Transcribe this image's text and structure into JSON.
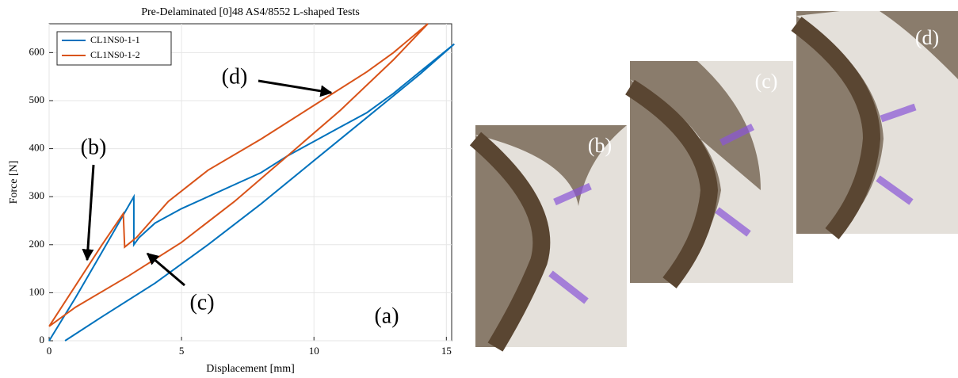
{
  "chart_data": {
    "type": "line",
    "title": "Pre-Delaminated [0]48 AS4/8552 L-shaped Tests",
    "x_label": "Displacement [mm]",
    "y_label": "Force [N]",
    "xlim": [
      0,
      15.2
    ],
    "ylim": [
      0,
      660
    ],
    "xticks": [
      0,
      5,
      10,
      15
    ],
    "yticks": [
      0,
      100,
      200,
      300,
      400,
      500,
      600
    ],
    "grid": true,
    "legend": "upper left",
    "series": [
      {
        "name": "CL1NS0-1-1",
        "color": "#0072bd",
        "x": [
          0,
          1,
          2,
          3.2,
          3.2,
          3.4,
          4,
          5,
          6,
          7,
          8,
          9,
          10,
          11,
          12,
          13,
          14,
          15.3,
          14,
          12,
          10,
          8,
          6,
          4,
          2,
          0.6
        ],
        "values": [
          0,
          90,
          185,
          300,
          200,
          215,
          245,
          275,
          300,
          325,
          350,
          385,
          415,
          445,
          475,
          515,
          560,
          618,
          555,
          465,
          375,
          285,
          200,
          120,
          50,
          0
        ]
      },
      {
        "name": "CL1NS0-1-2",
        "color": "#d95319",
        "x": [
          0,
          1,
          2,
          2.8,
          2.85,
          3.3,
          4.5,
          6,
          8,
          10,
          12,
          13,
          14.3,
          13,
          11,
          9,
          7,
          5,
          3,
          1,
          0
        ],
        "values": [
          30,
          115,
          200,
          265,
          195,
          215,
          290,
          355,
          420,
          490,
          560,
          600,
          660,
          585,
          480,
          385,
          290,
          205,
          135,
          70,
          30
        ]
      }
    ],
    "annotations": [
      "(a)",
      "(b)",
      "(c)",
      "(d)"
    ]
  },
  "photo_panels": [
    {
      "label": "(b)"
    },
    {
      "label": "(c)"
    },
    {
      "label": "(d)"
    }
  ]
}
